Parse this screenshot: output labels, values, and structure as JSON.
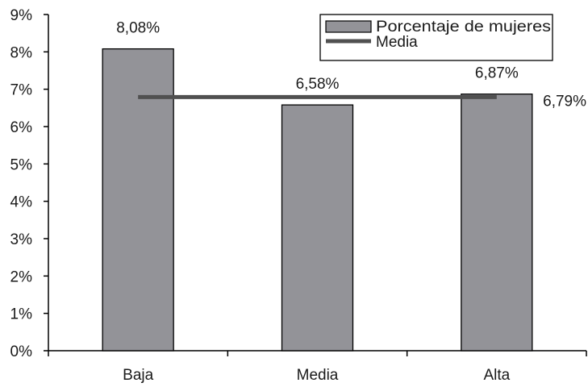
{
  "chart_data": {
    "type": "bar",
    "categories": [
      "Baja",
      "Media",
      "Alta"
    ],
    "series": [
      {
        "name": "Porcentaje de mujeres",
        "values": [
          8.08,
          6.58,
          6.87
        ],
        "labels": [
          "8,08%",
          "6,58%",
          "6,87%"
        ],
        "color": "#939398"
      }
    ],
    "mean": {
      "name": "Media",
      "value": 6.79,
      "label": "6,79%",
      "color": "#505050"
    },
    "yticks": [
      0,
      1,
      2,
      3,
      4,
      5,
      6,
      7,
      8,
      9
    ],
    "ytick_labels": [
      "0%",
      "1%",
      "2%",
      "3%",
      "4%",
      "5%",
      "6%",
      "7%",
      "8%",
      "9%"
    ],
    "ylim": [
      0,
      9
    ],
    "grid": false,
    "legend_position": "top-right",
    "title": "",
    "xlabel": "",
    "ylabel": ""
  }
}
